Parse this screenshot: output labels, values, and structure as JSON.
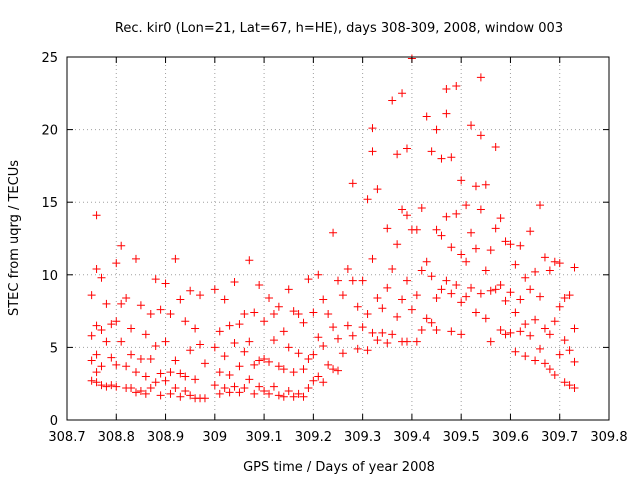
{
  "chart_data": {
    "type": "scatter",
    "title": "Rec. kir0 (Lon=21, Lat=67, h=HE), days 308-309, 2008, window 003",
    "xlabel": "GPS time / Days of year 2008",
    "ylabel": "STEC from uqrg / TECUs",
    "xlim": [
      308.7,
      309.8
    ],
    "ylim": [
      0,
      25
    ],
    "x_ticks": [
      "308.7",
      "308.8",
      "308.9",
      "309",
      "309.1",
      "309.2",
      "309.3",
      "309.4",
      "309.5",
      "309.6",
      "309.7",
      "309.8"
    ],
    "y_ticks": [
      "0",
      "5",
      "10",
      "15",
      "20",
      "25"
    ],
    "grid": true,
    "marker": "plus",
    "color": "#ff0000",
    "series": [
      {
        "points": [
          [
            308.75,
            8.6
          ],
          [
            308.75,
            5.8
          ],
          [
            308.75,
            4.1
          ],
          [
            308.75,
            2.7
          ],
          [
            308.76,
            14.1
          ],
          [
            308.76,
            10.4
          ],
          [
            308.76,
            6.5
          ],
          [
            308.76,
            4.5
          ],
          [
            308.76,
            3.3
          ],
          [
            308.76,
            2.6
          ],
          [
            308.77,
            9.8
          ],
          [
            308.77,
            6.2
          ],
          [
            308.77,
            3.7
          ],
          [
            308.77,
            2.4
          ],
          [
            308.78,
            8.0
          ],
          [
            308.78,
            5.4
          ],
          [
            308.78,
            2.3
          ],
          [
            308.79,
            6.6
          ],
          [
            308.79,
            4.3
          ],
          [
            308.79,
            2.4
          ],
          [
            308.8,
            10.8
          ],
          [
            308.8,
            6.8
          ],
          [
            308.8,
            3.8
          ],
          [
            308.8,
            2.3
          ],
          [
            308.81,
            12.0
          ],
          [
            308.81,
            8.0
          ],
          [
            308.81,
            5.4
          ],
          [
            308.82,
            8.4
          ],
          [
            308.82,
            3.7
          ],
          [
            308.82,
            2.2
          ],
          [
            308.83,
            6.3
          ],
          [
            308.83,
            4.5
          ],
          [
            308.83,
            2.2
          ],
          [
            308.84,
            11.1
          ],
          [
            308.84,
            3.3
          ],
          [
            308.84,
            1.9
          ],
          [
            308.85,
            7.9
          ],
          [
            308.85,
            4.2
          ],
          [
            308.85,
            2.0
          ],
          [
            308.86,
            5.9
          ],
          [
            308.86,
            3.0
          ],
          [
            308.86,
            1.8
          ],
          [
            308.87,
            7.3
          ],
          [
            308.87,
            4.2
          ],
          [
            308.87,
            2.2
          ],
          [
            308.88,
            9.7
          ],
          [
            308.88,
            5.1
          ],
          [
            308.88,
            2.6
          ],
          [
            308.89,
            7.6
          ],
          [
            308.89,
            3.2
          ],
          [
            308.89,
            1.7
          ],
          [
            308.9,
            9.4
          ],
          [
            308.9,
            5.4
          ],
          [
            308.9,
            2.7
          ],
          [
            308.91,
            7.3
          ],
          [
            308.91,
            3.3
          ],
          [
            308.91,
            1.8
          ],
          [
            308.92,
            11.1
          ],
          [
            308.92,
            4.1
          ],
          [
            308.92,
            2.2
          ],
          [
            308.93,
            8.3
          ],
          [
            308.93,
            3.2
          ],
          [
            308.93,
            1.6
          ],
          [
            308.94,
            6.8
          ],
          [
            308.94,
            3.0
          ],
          [
            308.94,
            2.0
          ],
          [
            308.95,
            8.9
          ],
          [
            308.95,
            4.8
          ],
          [
            308.95,
            1.7
          ],
          [
            308.96,
            6.3
          ],
          [
            308.96,
            2.8
          ],
          [
            308.96,
            1.5
          ],
          [
            308.97,
            8.6
          ],
          [
            308.97,
            5.2
          ],
          [
            308.97,
            1.5
          ],
          [
            308.98,
            3.9
          ],
          [
            308.98,
            1.5
          ],
          [
            309.0,
            9.0
          ],
          [
            309.0,
            5.0
          ],
          [
            309.0,
            2.4
          ],
          [
            309.01,
            6.1
          ],
          [
            309.01,
            3.3
          ],
          [
            309.01,
            1.8
          ],
          [
            309.02,
            8.3
          ],
          [
            309.02,
            4.4
          ],
          [
            309.02,
            2.2
          ],
          [
            309.03,
            6.5
          ],
          [
            309.03,
            3.1
          ],
          [
            309.03,
            1.9
          ],
          [
            309.04,
            9.5
          ],
          [
            309.04,
            5.3
          ],
          [
            309.04,
            2.3
          ],
          [
            309.05,
            6.6
          ],
          [
            309.05,
            3.7
          ],
          [
            309.05,
            1.9
          ],
          [
            309.06,
            7.3
          ],
          [
            309.06,
            4.7
          ],
          [
            309.06,
            2.2
          ],
          [
            309.07,
            11.0
          ],
          [
            309.07,
            5.4
          ],
          [
            309.07,
            2.8
          ],
          [
            309.08,
            7.4
          ],
          [
            309.08,
            3.8
          ],
          [
            309.08,
            1.8
          ],
          [
            309.09,
            9.3
          ],
          [
            309.09,
            4.1
          ],
          [
            309.09,
            2.3
          ],
          [
            309.1,
            6.8
          ],
          [
            309.1,
            4.2
          ],
          [
            309.1,
            2.0
          ],
          [
            309.11,
            8.4
          ],
          [
            309.11,
            4.0
          ],
          [
            309.11,
            1.8
          ],
          [
            309.12,
            7.3
          ],
          [
            309.12,
            5.5
          ],
          [
            309.12,
            2.3
          ],
          [
            309.13,
            7.8
          ],
          [
            309.13,
            3.7
          ],
          [
            309.13,
            1.7
          ],
          [
            309.14,
            6.1
          ],
          [
            309.14,
            3.5
          ],
          [
            309.14,
            1.6
          ],
          [
            309.15,
            9.0
          ],
          [
            309.15,
            5.0
          ],
          [
            309.15,
            2.0
          ],
          [
            309.16,
            7.5
          ],
          [
            309.16,
            3.3
          ],
          [
            309.16,
            1.6
          ],
          [
            309.17,
            7.3
          ],
          [
            309.17,
            4.6
          ],
          [
            309.17,
            1.8
          ],
          [
            309.18,
            6.7
          ],
          [
            309.18,
            3.5
          ],
          [
            309.18,
            1.6
          ],
          [
            309.19,
            9.7
          ],
          [
            309.19,
            4.2
          ],
          [
            309.19,
            2.2
          ],
          [
            309.2,
            7.4
          ],
          [
            309.2,
            4.5
          ],
          [
            309.2,
            2.7
          ],
          [
            309.21,
            10.0
          ],
          [
            309.21,
            5.7
          ],
          [
            309.21,
            3.0
          ],
          [
            309.22,
            8.3
          ],
          [
            309.22,
            5.1
          ],
          [
            309.22,
            2.6
          ],
          [
            309.23,
            7.3
          ],
          [
            309.23,
            3.8
          ],
          [
            309.24,
            12.9
          ],
          [
            309.24,
            6.4
          ],
          [
            309.24,
            3.5
          ],
          [
            309.25,
            9.6
          ],
          [
            309.25,
            5.6
          ],
          [
            309.25,
            3.4
          ],
          [
            309.26,
            8.6
          ],
          [
            309.26,
            4.6
          ],
          [
            309.27,
            10.4
          ],
          [
            309.27,
            6.5
          ],
          [
            309.28,
            16.3
          ],
          [
            309.28,
            9.6
          ],
          [
            309.28,
            5.8
          ],
          [
            309.29,
            7.8
          ],
          [
            309.29,
            4.9
          ],
          [
            309.3,
            9.6
          ],
          [
            309.3,
            6.4
          ],
          [
            309.31,
            15.2
          ],
          [
            309.31,
            7.3
          ],
          [
            309.31,
            4.8
          ],
          [
            309.32,
            20.1
          ],
          [
            309.32,
            18.5
          ],
          [
            309.32,
            11.1
          ],
          [
            309.32,
            6.0
          ],
          [
            309.33,
            15.9
          ],
          [
            309.33,
            8.4
          ],
          [
            309.33,
            5.5
          ],
          [
            309.34,
            7.7
          ],
          [
            309.34,
            6.0
          ],
          [
            309.35,
            13.2
          ],
          [
            309.35,
            9.1
          ],
          [
            309.35,
            5.3
          ],
          [
            309.36,
            22.0
          ],
          [
            309.36,
            10.4
          ],
          [
            309.36,
            5.9
          ],
          [
            309.37,
            18.3
          ],
          [
            309.37,
            12.1
          ],
          [
            309.37,
            7.1
          ],
          [
            309.38,
            22.5
          ],
          [
            309.38,
            14.5
          ],
          [
            309.38,
            8.3
          ],
          [
            309.38,
            5.4
          ],
          [
            309.39,
            18.7
          ],
          [
            309.39,
            14.1
          ],
          [
            309.39,
            9.6
          ],
          [
            309.39,
            5.4
          ],
          [
            309.4,
            24.9
          ],
          [
            309.4,
            13.1
          ],
          [
            309.4,
            7.6
          ],
          [
            309.41,
            13.1
          ],
          [
            309.41,
            8.6
          ],
          [
            309.41,
            5.4
          ],
          [
            309.42,
            14.6
          ],
          [
            309.42,
            10.3
          ],
          [
            309.42,
            6.2
          ],
          [
            309.43,
            20.9
          ],
          [
            309.43,
            10.9
          ],
          [
            309.43,
            7.0
          ],
          [
            309.44,
            18.5
          ],
          [
            309.44,
            9.9
          ],
          [
            309.44,
            6.7
          ],
          [
            309.45,
            20.0
          ],
          [
            309.45,
            13.1
          ],
          [
            309.45,
            8.4
          ],
          [
            309.45,
            6.2
          ],
          [
            309.46,
            18.0
          ],
          [
            309.46,
            12.7
          ],
          [
            309.46,
            9.0
          ],
          [
            309.47,
            22.8
          ],
          [
            309.47,
            21.1
          ],
          [
            309.47,
            14.0
          ],
          [
            309.47,
            9.6
          ],
          [
            309.48,
            18.1
          ],
          [
            309.48,
            11.9
          ],
          [
            309.48,
            8.7
          ],
          [
            309.48,
            6.1
          ],
          [
            309.49,
            23.0
          ],
          [
            309.49,
            14.2
          ],
          [
            309.49,
            9.3
          ],
          [
            309.5,
            16.5
          ],
          [
            309.5,
            11.4
          ],
          [
            309.5,
            8.1
          ],
          [
            309.5,
            5.9
          ],
          [
            309.51,
            14.8
          ],
          [
            309.51,
            10.9
          ],
          [
            309.51,
            8.5
          ],
          [
            309.52,
            20.3
          ],
          [
            309.52,
            12.9
          ],
          [
            309.52,
            9.1
          ],
          [
            309.53,
            16.1
          ],
          [
            309.53,
            11.8
          ],
          [
            309.53,
            7.4
          ],
          [
            309.54,
            23.6
          ],
          [
            309.54,
            19.6
          ],
          [
            309.54,
            14.5
          ],
          [
            309.54,
            8.7
          ],
          [
            309.55,
            16.2
          ],
          [
            309.55,
            10.3
          ],
          [
            309.55,
            7.0
          ],
          [
            309.56,
            11.7
          ],
          [
            309.56,
            8.9
          ],
          [
            309.56,
            5.4
          ],
          [
            309.57,
            18.8
          ],
          [
            309.57,
            13.2
          ],
          [
            309.57,
            9.0
          ],
          [
            309.58,
            13.9
          ],
          [
            309.58,
            9.3
          ],
          [
            309.58,
            6.2
          ],
          [
            309.59,
            12.3
          ],
          [
            309.59,
            8.2
          ],
          [
            309.59,
            5.9
          ],
          [
            309.6,
            12.1
          ],
          [
            309.6,
            8.8
          ],
          [
            309.6,
            6.0
          ],
          [
            309.61,
            10.7
          ],
          [
            309.61,
            7.4
          ],
          [
            309.61,
            4.7
          ],
          [
            309.62,
            12.0
          ],
          [
            309.62,
            8.3
          ],
          [
            309.62,
            6.1
          ],
          [
            309.63,
            9.8
          ],
          [
            309.63,
            6.6
          ],
          [
            309.63,
            4.4
          ],
          [
            309.64,
            13.0
          ],
          [
            309.64,
            9.0
          ],
          [
            309.64,
            5.8
          ],
          [
            309.65,
            10.2
          ],
          [
            309.65,
            6.9
          ],
          [
            309.65,
            4.1
          ],
          [
            309.66,
            14.8
          ],
          [
            309.66,
            8.5
          ],
          [
            309.66,
            4.9
          ],
          [
            309.67,
            11.2
          ],
          [
            309.67,
            6.3
          ],
          [
            309.67,
            3.9
          ],
          [
            309.68,
            10.3
          ],
          [
            309.68,
            5.9
          ],
          [
            309.68,
            3.5
          ],
          [
            309.69,
            10.9
          ],
          [
            309.69,
            6.8
          ],
          [
            309.69,
            3.1
          ],
          [
            309.7,
            10.8
          ],
          [
            309.7,
            7.8
          ],
          [
            309.7,
            4.5
          ],
          [
            309.71,
            8.4
          ],
          [
            309.71,
            5.5
          ],
          [
            309.71,
            2.6
          ],
          [
            309.72,
            8.6
          ],
          [
            309.72,
            4.8
          ],
          [
            309.72,
            2.4
          ],
          [
            309.73,
            10.5
          ],
          [
            309.73,
            6.3
          ],
          [
            309.73,
            4.0
          ],
          [
            309.73,
            2.2
          ]
        ]
      }
    ]
  }
}
